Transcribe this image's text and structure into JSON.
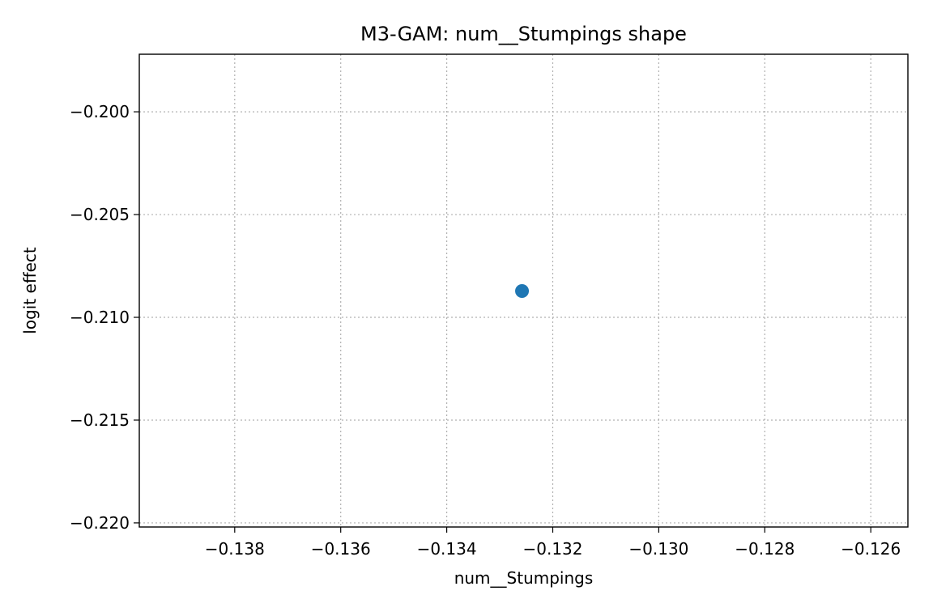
{
  "chart_data": {
    "type": "scatter",
    "title": "M3-GAM: num__Stumpings shape",
    "xlabel": "num__Stumpings",
    "ylabel": "logit effect",
    "xlim": [
      -0.1398,
      -0.1253
    ],
    "ylim": [
      -0.2202,
      -0.1972
    ],
    "xticks": [
      -0.138,
      -0.136,
      -0.134,
      -0.132,
      -0.13,
      -0.128,
      -0.126
    ],
    "xtick_labels": [
      "−0.138",
      "−0.136",
      "−0.134",
      "−0.132",
      "−0.130",
      "−0.128",
      "−0.126"
    ],
    "yticks": [
      -0.2,
      -0.205,
      -0.21,
      -0.215,
      -0.22
    ],
    "ytick_labels": [
      "−0.200",
      "−0.205",
      "−0.210",
      "−0.215",
      "−0.220"
    ],
    "grid": true,
    "series": [
      {
        "name": "num__Stumpings",
        "color": "#1f77b4",
        "points": [
          {
            "x": -0.13258,
            "y": -0.20872
          }
        ]
      }
    ]
  }
}
